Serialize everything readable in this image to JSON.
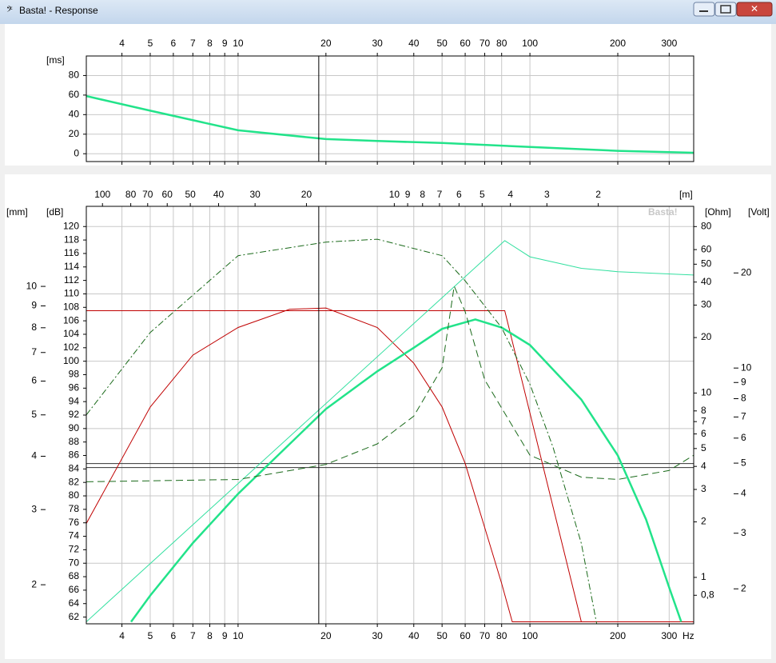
{
  "window": {
    "title": "Basta! - Response"
  },
  "chart_data": [
    {
      "type": "line",
      "ylabel": "[ms]",
      "xlim": [
        3.02,
        364
      ],
      "xticks": [
        4,
        5,
        6,
        7,
        8,
        9,
        10,
        20,
        30,
        40,
        50,
        60,
        70,
        80,
        100,
        200,
        300
      ],
      "xlog": true,
      "ylim": [
        -8,
        100
      ],
      "yticks": [
        0,
        20,
        40,
        60,
        80
      ],
      "grid": true,
      "cursor": 18.9,
      "series": [
        {
          "color": "#22e38a",
          "style": "thick",
          "axis": "y",
          "x": [
            3.02,
            5,
            10,
            20,
            30,
            50,
            100,
            200,
            364
          ],
          "values": [
            59,
            44,
            24,
            15,
            13,
            11,
            7,
            3,
            1
          ]
        }
      ]
    },
    {
      "type": "line",
      "watermark": "Basta!",
      "xunit": "Hz",
      "xlim": [
        3.02,
        364
      ],
      "xticks": [
        4,
        5,
        6,
        7,
        8,
        9,
        10,
        20,
        30,
        40,
        50,
        60,
        70,
        80,
        100,
        200,
        300
      ],
      "xlog": true,
      "x2label": "[m]",
      "x2lim": [
        113.6,
        0.942
      ],
      "x2ticks": [
        100,
        80,
        70,
        60,
        50,
        40,
        30,
        20,
        10,
        9,
        8,
        7,
        6,
        5,
        4,
        3,
        2
      ],
      "x2log": true,
      "ylabel": "[dB]",
      "ylim": [
        61,
        123
      ],
      "yticks": [
        62,
        64,
        66,
        68,
        70,
        72,
        74,
        76,
        78,
        80,
        82,
        84,
        86,
        88,
        90,
        92,
        94,
        96,
        98,
        100,
        102,
        104,
        106,
        108,
        110,
        112,
        114,
        116,
        118,
        120
      ],
      "y2label": "[Ohm]",
      "y2lim": [
        0.56,
        103
      ],
      "y2log": true,
      "y2ticks": [
        80,
        60,
        50,
        40,
        30,
        20,
        10,
        8,
        7,
        6,
        5,
        4,
        3,
        2,
        1,
        {
          "value": 0.8,
          "label": "0,8"
        }
      ],
      "y3label": "[mm]",
      "y3lim": [
        1.62,
        15.4
      ],
      "y3log": true,
      "y3ticks": [
        10,
        9,
        8,
        7,
        6,
        5,
        4,
        3,
        2
      ],
      "y4label": "[Volt]",
      "y4lim": [
        1.55,
        32.5
      ],
      "y4log": true,
      "y4ticks": [
        20,
        10,
        9,
        8,
        7,
        6,
        5,
        4,
        3,
        2
      ],
      "grid": true,
      "cursor": 18.9,
      "hlines": [
        84.8,
        84.2
      ],
      "series": [
        {
          "color": "#c00000",
          "style": "thin",
          "axis": "y",
          "x": [
            3.02,
            5,
            7,
            10,
            15,
            20,
            30,
            40,
            50,
            60,
            70,
            80,
            87,
            364
          ],
          "values": [
            75.9,
            93.2,
            100.9,
            105,
            107.7,
            107.9,
            105,
            99.7,
            93.2,
            84.8,
            75.3,
            67,
            61.3,
            61.3
          ]
        },
        {
          "color": "#c00000",
          "style": "thin",
          "axis": "y",
          "x": [
            3.02,
            82,
            150,
            364
          ],
          "values": [
            107.5,
            107.5,
            61.3,
            61.3
          ]
        },
        {
          "color": "#33e0a0",
          "style": "thin",
          "axis": "y",
          "x": [
            3.02,
            82,
            100,
            150,
            200,
            364
          ],
          "values": [
            61.3,
            117.9,
            115.5,
            113.8,
            113.3,
            112.8
          ]
        },
        {
          "color": "#22e38a",
          "style": "thick",
          "axis": "y",
          "x": [
            4.3,
            5,
            7,
            10,
            20,
            30,
            40,
            50,
            65,
            80,
            100,
            150,
            200,
            250,
            300,
            330
          ],
          "values": [
            61.3,
            65.2,
            73,
            80.3,
            92.9,
            98.5,
            102,
            104.8,
            106.2,
            105,
            102.4,
            94.3,
            86,
            76.5,
            66.4,
            61.3
          ]
        },
        {
          "color": "#1a6a1a",
          "style": "dashed",
          "axis": "y2",
          "x": [
            3.02,
            10,
            20,
            30,
            40,
            50,
            55,
            60,
            70,
            100,
            150,
            200,
            300,
            364
          ],
          "values": [
            3.3,
            3.4,
            4.1,
            5.3,
            7.5,
            13.7,
            38,
            27.6,
            11.8,
            4.6,
            3.5,
            3.4,
            3.8,
            4.6
          ]
        },
        {
          "color": "#1a6a1a",
          "style": "dash-dot",
          "axis": "y3",
          "x": [
            3.02,
            5,
            10,
            20,
            30,
            50,
            60,
            80,
            100,
            120,
            150,
            170
          ],
          "values": [
            5,
            7.8,
            11.8,
            12.7,
            12.9,
            11.8,
            10.3,
            8,
            5.9,
            4.2,
            2.5,
            1.6
          ]
        }
      ]
    }
  ]
}
